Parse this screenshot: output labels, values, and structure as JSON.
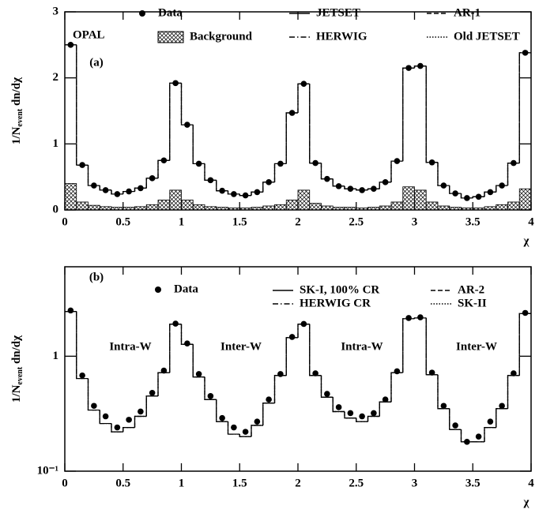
{
  "chart_data": [
    {
      "type": "histogram",
      "label": "(a)",
      "annotations": [
        "OPAL"
      ],
      "xlabel": "χ",
      "ylabel": [
        "1/N",
        "event",
        " dn/dχ"
      ],
      "bins": [
        0,
        0.1,
        0.2,
        0.3,
        0.4,
        0.5,
        0.6,
        0.7,
        0.8,
        0.9,
        1,
        1.1,
        1.2,
        1.3,
        1.4,
        1.5,
        1.6,
        1.7,
        1.8,
        1.9,
        2,
        2.1,
        2.2,
        2.3,
        2.4,
        2.5,
        2.6,
        2.7,
        2.8,
        2.9,
        3,
        3.1,
        3.2,
        3.3,
        3.4,
        3.5,
        3.6,
        3.7,
        3.8,
        3.9,
        4
      ],
      "xlim": [
        0,
        4
      ],
      "xticks": [
        0,
        0.5,
        1,
        1.5,
        2,
        2.5,
        3,
        3.5,
        4
      ],
      "ylim": [
        0,
        3
      ],
      "yticks": [
        0,
        1,
        2,
        3
      ],
      "log": false,
      "data": {
        "name": "Data",
        "color": "#000000",
        "values": [
          2.5,
          0.68,
          0.37,
          0.3,
          0.24,
          0.28,
          0.33,
          0.48,
          0.75,
          1.92,
          1.29,
          0.7,
          0.45,
          0.29,
          0.24,
          0.22,
          0.27,
          0.42,
          0.7,
          1.47,
          1.91,
          0.71,
          0.47,
          0.36,
          0.32,
          0.3,
          0.32,
          0.42,
          0.74,
          2.15,
          2.18,
          0.72,
          0.37,
          0.25,
          0.18,
          0.2,
          0.27,
          0.37,
          0.71,
          2.38
        ]
      },
      "background": {
        "name": "Background",
        "color": "#000000",
        "values": [
          0.4,
          0.12,
          0.07,
          0.05,
          0.04,
          0.04,
          0.05,
          0.08,
          0.15,
          0.3,
          0.15,
          0.08,
          0.05,
          0.04,
          0.03,
          0.03,
          0.04,
          0.06,
          0.08,
          0.15,
          0.3,
          0.1,
          0.06,
          0.04,
          0.04,
          0.03,
          0.04,
          0.06,
          0.12,
          0.35,
          0.3,
          0.12,
          0.06,
          0.04,
          0.03,
          0.03,
          0.05,
          0.08,
          0.12,
          0.32
        ]
      },
      "series": [
        {
          "name": "JETSET",
          "style": "solid",
          "color": "#000000",
          "values": [
            2.5,
            0.68,
            0.37,
            0.3,
            0.24,
            0.28,
            0.33,
            0.48,
            0.75,
            1.92,
            1.29,
            0.7,
            0.45,
            0.29,
            0.24,
            0.22,
            0.27,
            0.42,
            0.7,
            1.47,
            1.91,
            0.71,
            0.47,
            0.36,
            0.32,
            0.3,
            0.32,
            0.42,
            0.74,
            2.15,
            2.18,
            0.72,
            0.37,
            0.25,
            0.18,
            0.2,
            0.27,
            0.37,
            0.71,
            2.38
          ]
        },
        {
          "name": "HERWIG",
          "style": "dashdot",
          "color": "#000000",
          "values": [
            2.5,
            0.68,
            0.37,
            0.3,
            0.24,
            0.28,
            0.33,
            0.48,
            0.75,
            1.92,
            1.29,
            0.7,
            0.45,
            0.29,
            0.24,
            0.22,
            0.27,
            0.42,
            0.7,
            1.47,
            1.91,
            0.71,
            0.47,
            0.36,
            0.32,
            0.3,
            0.32,
            0.42,
            0.74,
            2.15,
            2.18,
            0.72,
            0.37,
            0.25,
            0.18,
            0.2,
            0.27,
            0.37,
            0.71,
            2.38
          ]
        },
        {
          "name": "AR-1",
          "style": "dashed",
          "color": "#000000",
          "values": [
            2.5,
            0.68,
            0.37,
            0.3,
            0.24,
            0.28,
            0.33,
            0.48,
            0.75,
            1.92,
            1.29,
            0.7,
            0.45,
            0.29,
            0.24,
            0.22,
            0.27,
            0.42,
            0.7,
            1.47,
            1.91,
            0.71,
            0.47,
            0.36,
            0.32,
            0.3,
            0.32,
            0.42,
            0.74,
            2.15,
            2.18,
            0.72,
            0.37,
            0.25,
            0.18,
            0.2,
            0.27,
            0.37,
            0.71,
            2.38
          ]
        },
        {
          "name": "Old JETSET",
          "style": "dotted",
          "color": "#000000",
          "values": [
            2.5,
            0.68,
            0.37,
            0.3,
            0.24,
            0.28,
            0.33,
            0.48,
            0.75,
            1.92,
            1.29,
            0.7,
            0.45,
            0.29,
            0.24,
            0.22,
            0.27,
            0.42,
            0.7,
            1.47,
            1.91,
            0.71,
            0.47,
            0.36,
            0.32,
            0.3,
            0.32,
            0.42,
            0.74,
            2.15,
            2.18,
            0.72,
            0.37,
            0.25,
            0.18,
            0.2,
            0.27,
            0.37,
            0.71,
            2.38
          ]
        }
      ]
    },
    {
      "type": "histogram",
      "label": "(b)",
      "annotations": [
        "Intra-W",
        "Inter-W",
        "Intra-W",
        "Inter-W"
      ],
      "xlabel": "χ",
      "ylabel": [
        "1/N",
        "event",
        " dn/dχ"
      ],
      "bins": [
        0,
        0.1,
        0.2,
        0.3,
        0.4,
        0.5,
        0.6,
        0.7,
        0.8,
        0.9,
        1,
        1.1,
        1.2,
        1.3,
        1.4,
        1.5,
        1.6,
        1.7,
        1.8,
        1.9,
        2,
        2.1,
        2.2,
        2.3,
        2.4,
        2.5,
        2.6,
        2.7,
        2.8,
        2.9,
        3,
        3.1,
        3.2,
        3.3,
        3.4,
        3.5,
        3.6,
        3.7,
        3.8,
        3.9,
        4
      ],
      "xlim": [
        0,
        4
      ],
      "xticks": [
        0,
        0.5,
        1,
        1.5,
        2,
        2.5,
        3,
        3.5,
        4
      ],
      "ylim": [
        0.1,
        6
      ],
      "yticks": [
        {
          "value": 0.1,
          "label": "10⁻¹"
        },
        1
      ],
      "log": true,
      "data": {
        "name": "Data",
        "color": "#000000",
        "values": [
          2.5,
          0.68,
          0.37,
          0.3,
          0.24,
          0.28,
          0.33,
          0.48,
          0.75,
          1.92,
          1.29,
          0.7,
          0.45,
          0.29,
          0.24,
          0.22,
          0.27,
          0.42,
          0.7,
          1.47,
          1.91,
          0.71,
          0.47,
          0.36,
          0.32,
          0.3,
          0.32,
          0.42,
          0.74,
          2.15,
          2.18,
          0.72,
          0.37,
          0.25,
          0.18,
          0.2,
          0.27,
          0.37,
          0.71,
          2.38
        ]
      },
      "series": [
        {
          "name": "SK-I, 100% CR",
          "style": "solid",
          "color": "#000000",
          "values": [
            2.45,
            0.64,
            0.34,
            0.26,
            0.22,
            0.24,
            0.3,
            0.45,
            0.72,
            1.9,
            1.27,
            0.66,
            0.42,
            0.27,
            0.21,
            0.2,
            0.25,
            0.39,
            0.68,
            1.45,
            1.9,
            0.68,
            0.44,
            0.33,
            0.29,
            0.27,
            0.3,
            0.4,
            0.72,
            2.12,
            2.15,
            0.69,
            0.35,
            0.23,
            0.18,
            0.18,
            0.24,
            0.35,
            0.68,
            2.35
          ]
        },
        {
          "name": "HERWIG CR",
          "style": "dashdot",
          "color": "#000000",
          "values": [
            2.45,
            0.64,
            0.34,
            0.26,
            0.22,
            0.24,
            0.3,
            0.45,
            0.72,
            1.9,
            1.27,
            0.66,
            0.42,
            0.27,
            0.21,
            0.2,
            0.25,
            0.39,
            0.68,
            1.45,
            1.9,
            0.68,
            0.44,
            0.33,
            0.29,
            0.27,
            0.3,
            0.4,
            0.72,
            2.12,
            2.15,
            0.69,
            0.35,
            0.23,
            0.18,
            0.18,
            0.24,
            0.35,
            0.68,
            2.35
          ]
        },
        {
          "name": "AR-2",
          "style": "dashed",
          "color": "#000000",
          "values": [
            2.45,
            0.64,
            0.34,
            0.26,
            0.22,
            0.24,
            0.3,
            0.45,
            0.72,
            1.9,
            1.27,
            0.66,
            0.42,
            0.27,
            0.21,
            0.2,
            0.25,
            0.39,
            0.68,
            1.45,
            1.9,
            0.68,
            0.44,
            0.33,
            0.29,
            0.27,
            0.3,
            0.4,
            0.72,
            2.12,
            2.15,
            0.69,
            0.35,
            0.23,
            0.18,
            0.18,
            0.24,
            0.35,
            0.68,
            2.35
          ]
        },
        {
          "name": "SK-II",
          "style": "dotted",
          "color": "#000000",
          "values": [
            2.45,
            0.64,
            0.34,
            0.26,
            0.22,
            0.24,
            0.3,
            0.45,
            0.72,
            1.9,
            1.27,
            0.66,
            0.42,
            0.27,
            0.21,
            0.2,
            0.25,
            0.39,
            0.68,
            1.45,
            1.9,
            0.68,
            0.44,
            0.33,
            0.29,
            0.27,
            0.3,
            0.4,
            0.72,
            2.12,
            2.15,
            0.69,
            0.35,
            0.23,
            0.18,
            0.18,
            0.24,
            0.35,
            0.68,
            2.35
          ]
        }
      ]
    }
  ]
}
